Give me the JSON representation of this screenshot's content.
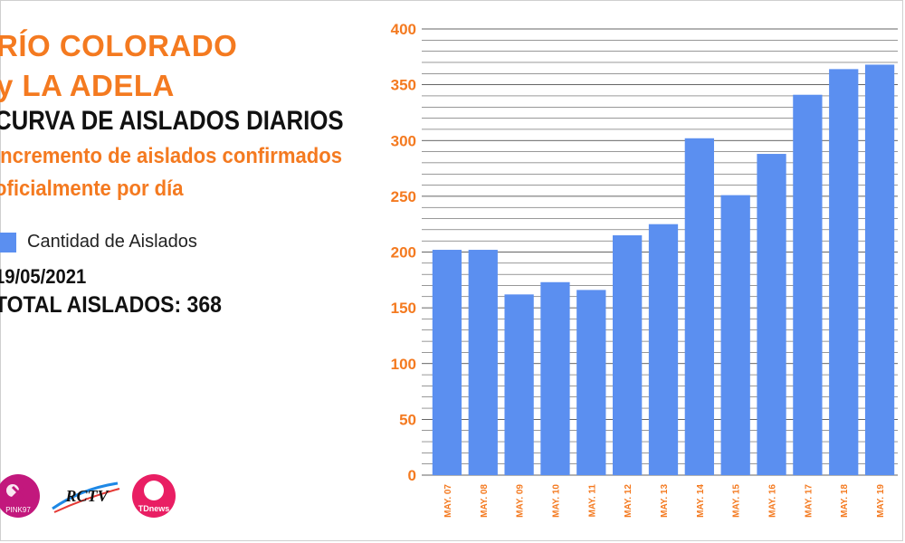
{
  "header": {
    "title_line1": "RÍO COLORADO",
    "title_line2": "y LA ADELA",
    "subtitle": "CURVA DE AISLADOS DIARIOS",
    "description": "Incremento de aislados confirmados oficialmente por día"
  },
  "legend": {
    "label": "Cantidad de Aislados",
    "color": "#5b8ff0"
  },
  "date": "19/05/2021",
  "total": "TOTAL AISLADOS: 368",
  "logos": [
    {
      "name": "pink-logo",
      "text": "PINK97"
    },
    {
      "name": "rctv-logo",
      "text": "RCTV"
    },
    {
      "name": "tdnews-logo",
      "text": "TDnews"
    }
  ],
  "colors": {
    "accent": "#f47a20",
    "bar": "#5b8ff0",
    "grid": "#333333"
  },
  "chart_data": {
    "type": "bar",
    "categories": [
      "MAY. 07",
      "MAY. 08",
      "MAY. 09",
      "MAY. 10",
      "MAY. 11",
      "MAY. 12",
      "MAY. 13",
      "MAY. 14",
      "MAY. 15",
      "MAY. 16",
      "MAY. 17",
      "MAY. 18",
      "MAY. 19"
    ],
    "series": [
      {
        "name": "Cantidad de Aislados",
        "values": [
          202,
          202,
          162,
          173,
          166,
          215,
          225,
          302,
          251,
          288,
          341,
          364,
          368
        ]
      }
    ],
    "yticks": [
      0,
      50,
      100,
      150,
      200,
      250,
      300,
      350,
      400
    ],
    "ylim": [
      0,
      400
    ],
    "grid": true,
    "legend_position": "left"
  }
}
